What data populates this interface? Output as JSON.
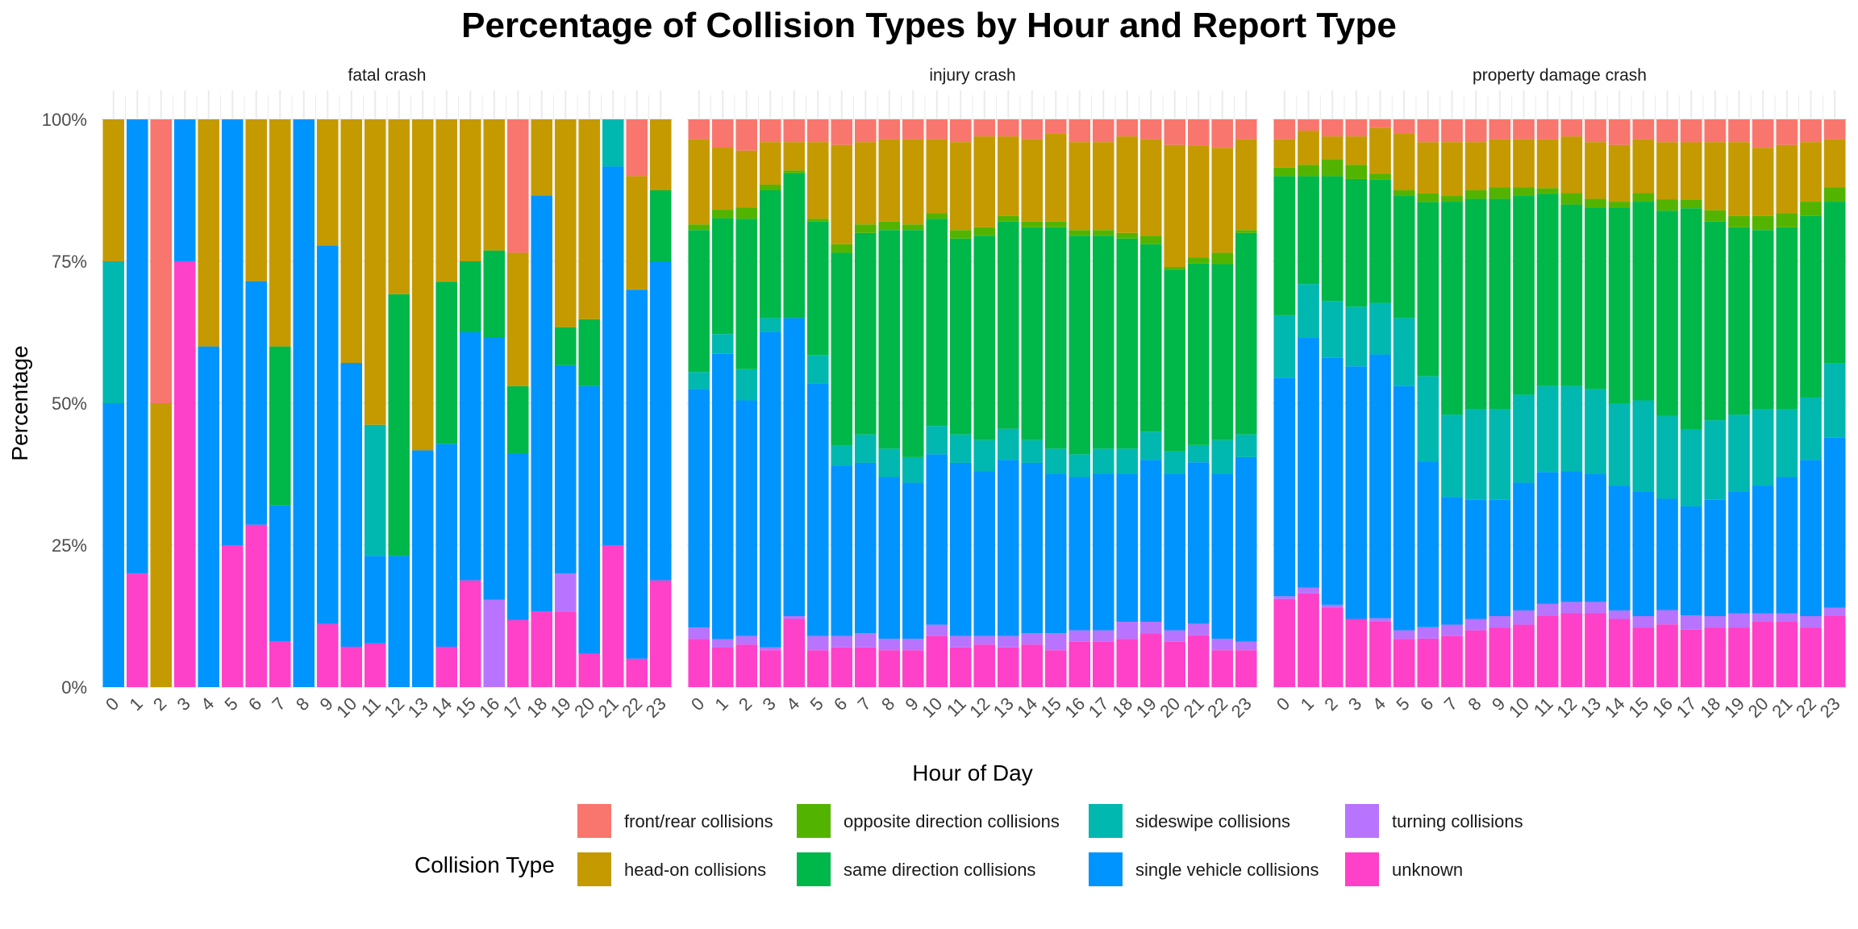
{
  "chart_data": {
    "type": "bar",
    "stacked": true,
    "normalized": true,
    "title": "Percentage of Collision Types by Hour and Report Type",
    "xlabel": "Hour of Day",
    "ylabel": "Percentage",
    "ylim": [
      0,
      1
    ],
    "yticks": [
      {
        "value": 0,
        "label": "0%"
      },
      {
        "value": 0.25,
        "label": "25%"
      },
      {
        "value": 0.5,
        "label": "50%"
      },
      {
        "value": 0.75,
        "label": "75%"
      },
      {
        "value": 1,
        "label": "100%"
      }
    ],
    "categories": [
      "0",
      "1",
      "2",
      "3",
      "4",
      "5",
      "6",
      "7",
      "8",
      "9",
      "10",
      "11",
      "12",
      "13",
      "14",
      "15",
      "16",
      "17",
      "18",
      "19",
      "20",
      "21",
      "22",
      "23"
    ],
    "legend": {
      "title": "Collision Type",
      "position": "bottom",
      "entries": [
        {
          "key": "front_rear",
          "label": "front/rear collisions",
          "color": "#F8766D"
        },
        {
          "key": "head_on",
          "label": "head-on collisions",
          "color": "#C49A00"
        },
        {
          "key": "opposite",
          "label": "opposite direction collisions",
          "color": "#53B400"
        },
        {
          "key": "same",
          "label": "same direction collisions",
          "color": "#00B74A"
        },
        {
          "key": "sideswipe",
          "label": "sideswipe collisions",
          "color": "#00B8B0"
        },
        {
          "key": "single",
          "label": "single vehicle collisions",
          "color": "#0094FF"
        },
        {
          "key": "turning",
          "label": "turning collisions",
          "color": "#B874FF"
        },
        {
          "key": "unknown",
          "label": "unknown",
          "color": "#FF40C8"
        }
      ]
    },
    "stack_order_bottom_to_top": [
      "unknown",
      "turning",
      "single",
      "sideswipe",
      "same",
      "opposite",
      "head_on",
      "front_rear"
    ],
    "facets": [
      {
        "name": "fatal crash",
        "series": {
          "unknown": [
            0,
            0.2,
            0,
            0.75,
            0,
            0.25,
            0.286,
            0.08,
            0,
            0.111,
            0.071,
            0.077,
            0,
            0,
            0.071,
            0.188,
            0,
            0.118,
            0.133,
            0.133,
            0.059,
            0.25,
            0.05,
            0.188
          ],
          "turning": [
            0,
            0,
            0,
            0,
            0,
            0,
            0,
            0,
            0,
            0,
            0,
            0,
            0,
            0,
            0,
            0,
            0.154,
            0,
            0,
            0.067,
            0,
            0,
            0,
            0
          ],
          "single": [
            0.5,
            0.8,
            0,
            0.25,
            0.6,
            0.75,
            0.429,
            0.24,
            1.0,
            0.667,
            0.5,
            0.154,
            0.231,
            0.417,
            0.357,
            0.437,
            0.461,
            0.294,
            0.733,
            0.367,
            0.471,
            0.667,
            0.65,
            0.562
          ],
          "sideswipe": [
            0.25,
            0,
            0,
            0,
            0,
            0,
            0,
            0,
            0,
            0,
            0,
            0.231,
            0,
            0,
            0,
            0,
            0,
            0,
            0,
            0,
            0,
            0.083,
            0,
            0
          ],
          "same": [
            0,
            0,
            0,
            0,
            0,
            0,
            0,
            0.28,
            0,
            0,
            0,
            0,
            0.461,
            0,
            0.286,
            0.125,
            0.154,
            0.118,
            0,
            0.067,
            0.118,
            0,
            0,
            0.125
          ],
          "opposite": [
            0,
            0,
            0,
            0,
            0,
            0,
            0,
            0,
            0,
            0,
            0,
            0,
            0,
            0,
            0,
            0,
            0,
            0,
            0,
            0,
            0,
            0,
            0,
            0
          ],
          "head_on": [
            0.25,
            0,
            0.5,
            0,
            0.4,
            0,
            0.285,
            0.4,
            0,
            0.222,
            0.429,
            0.538,
            0.308,
            0.583,
            0.286,
            0.25,
            0.231,
            0.235,
            0.134,
            0.366,
            0.352,
            0,
            0.2,
            0.125
          ],
          "front_rear": [
            0,
            0,
            0.5,
            0,
            0,
            0,
            0,
            0,
            0,
            0,
            0,
            0,
            0,
            0,
            0,
            0,
            0,
            0.235,
            0,
            0,
            0,
            0,
            0.1,
            0
          ]
        }
      },
      {
        "name": "injury crash",
        "series": {
          "unknown": [
            0.085,
            0.07,
            0.075,
            0.065,
            0.12,
            0.065,
            0.07,
            0.07,
            0.065,
            0.065,
            0.09,
            0.07,
            0.075,
            0.07,
            0.075,
            0.065,
            0.08,
            0.08,
            0.085,
            0.095,
            0.08,
            0.09,
            0.065,
            0.065
          ],
          "turning": [
            0.02,
            0.015,
            0.015,
            0.005,
            0.005,
            0.025,
            0.02,
            0.025,
            0.02,
            0.02,
            0.02,
            0.02,
            0.015,
            0.02,
            0.02,
            0.03,
            0.02,
            0.02,
            0.03,
            0.02,
            0.02,
            0.02,
            0.02,
            0.015
          ],
          "single": [
            0.42,
            0.505,
            0.415,
            0.555,
            0.525,
            0.445,
            0.3,
            0.3,
            0.285,
            0.275,
            0.3,
            0.305,
            0.29,
            0.31,
            0.3,
            0.28,
            0.27,
            0.275,
            0.26,
            0.285,
            0.275,
            0.28,
            0.29,
            0.325
          ],
          "sideswipe": [
            0.03,
            0.035,
            0.055,
            0.025,
            0.0,
            0.05,
            0.035,
            0.05,
            0.05,
            0.045,
            0.05,
            0.05,
            0.055,
            0.055,
            0.04,
            0.045,
            0.04,
            0.045,
            0.045,
            0.05,
            0.04,
            0.03,
            0.06,
            0.04
          ],
          "same": [
            0.25,
            0.205,
            0.265,
            0.225,
            0.255,
            0.235,
            0.34,
            0.355,
            0.385,
            0.4,
            0.365,
            0.345,
            0.36,
            0.365,
            0.375,
            0.39,
            0.385,
            0.375,
            0.37,
            0.33,
            0.32,
            0.315,
            0.31,
            0.355
          ],
          "opposite": [
            0.01,
            0.015,
            0.02,
            0.01,
            0.005,
            0.005,
            0.015,
            0.015,
            0.015,
            0.01,
            0.01,
            0.015,
            0.015,
            0.01,
            0.01,
            0.01,
            0.01,
            0.01,
            0.01,
            0.015,
            0.005,
            0.01,
            0.02,
            0.005
          ],
          "head_on": [
            0.15,
            0.11,
            0.1,
            0.075,
            0.05,
            0.135,
            0.175,
            0.145,
            0.145,
            0.15,
            0.13,
            0.155,
            0.16,
            0.14,
            0.145,
            0.155,
            0.155,
            0.155,
            0.17,
            0.17,
            0.215,
            0.195,
            0.185,
            0.16
          ],
          "front_rear": [
            0.035,
            0.05,
            0.055,
            0.04,
            0.04,
            0.04,
            0.045,
            0.04,
            0.035,
            0.035,
            0.035,
            0.04,
            0.03,
            0.03,
            0.035,
            0.025,
            0.04,
            0.04,
            0.03,
            0.035,
            0.045,
            0.045,
            0.05,
            0.035
          ]
        }
      },
      {
        "name": "property damage crash",
        "series": {
          "unknown": [
            0.155,
            0.165,
            0.14,
            0.12,
            0.115,
            0.085,
            0.085,
            0.09,
            0.1,
            0.105,
            0.11,
            0.125,
            0.13,
            0.13,
            0.12,
            0.105,
            0.11,
            0.1,
            0.105,
            0.105,
            0.115,
            0.115,
            0.105,
            0.125
          ],
          "turning": [
            0.005,
            0.01,
            0.005,
            0.0,
            0.005,
            0.015,
            0.02,
            0.02,
            0.02,
            0.02,
            0.025,
            0.02,
            0.02,
            0.02,
            0.015,
            0.02,
            0.025,
            0.025,
            0.02,
            0.025,
            0.015,
            0.015,
            0.02,
            0.015
          ],
          "single": [
            0.385,
            0.44,
            0.435,
            0.445,
            0.46,
            0.43,
            0.29,
            0.225,
            0.21,
            0.205,
            0.225,
            0.23,
            0.23,
            0.225,
            0.22,
            0.22,
            0.195,
            0.19,
            0.205,
            0.215,
            0.225,
            0.24,
            0.275,
            0.3
          ],
          "sideswipe": [
            0.11,
            0.095,
            0.1,
            0.105,
            0.09,
            0.12,
            0.15,
            0.145,
            0.16,
            0.16,
            0.155,
            0.15,
            0.15,
            0.15,
            0.145,
            0.16,
            0.145,
            0.135,
            0.14,
            0.135,
            0.135,
            0.12,
            0.11,
            0.13
          ],
          "same": [
            0.245,
            0.19,
            0.22,
            0.225,
            0.215,
            0.215,
            0.305,
            0.375,
            0.37,
            0.37,
            0.35,
            0.335,
            0.32,
            0.32,
            0.345,
            0.35,
            0.36,
            0.385,
            0.35,
            0.33,
            0.315,
            0.32,
            0.32,
            0.285
          ],
          "opposite": [
            0.015,
            0.02,
            0.03,
            0.025,
            0.01,
            0.01,
            0.015,
            0.01,
            0.015,
            0.02,
            0.015,
            0.01,
            0.02,
            0.015,
            0.01,
            0.015,
            0.02,
            0.015,
            0.02,
            0.02,
            0.025,
            0.025,
            0.025,
            0.025
          ],
          "head_on": [
            0.05,
            0.06,
            0.04,
            0.05,
            0.08,
            0.1,
            0.09,
            0.095,
            0.085,
            0.085,
            0.085,
            0.085,
            0.1,
            0.1,
            0.1,
            0.095,
            0.1,
            0.1,
            0.12,
            0.13,
            0.12,
            0.12,
            0.105,
            0.085
          ],
          "front_rear": [
            0.035,
            0.02,
            0.03,
            0.03,
            0.015,
            0.025,
            0.04,
            0.04,
            0.04,
            0.035,
            0.035,
            0.035,
            0.03,
            0.04,
            0.045,
            0.035,
            0.04,
            0.04,
            0.04,
            0.04,
            0.05,
            0.045,
            0.04,
            0.035
          ]
        }
      }
    ]
  }
}
